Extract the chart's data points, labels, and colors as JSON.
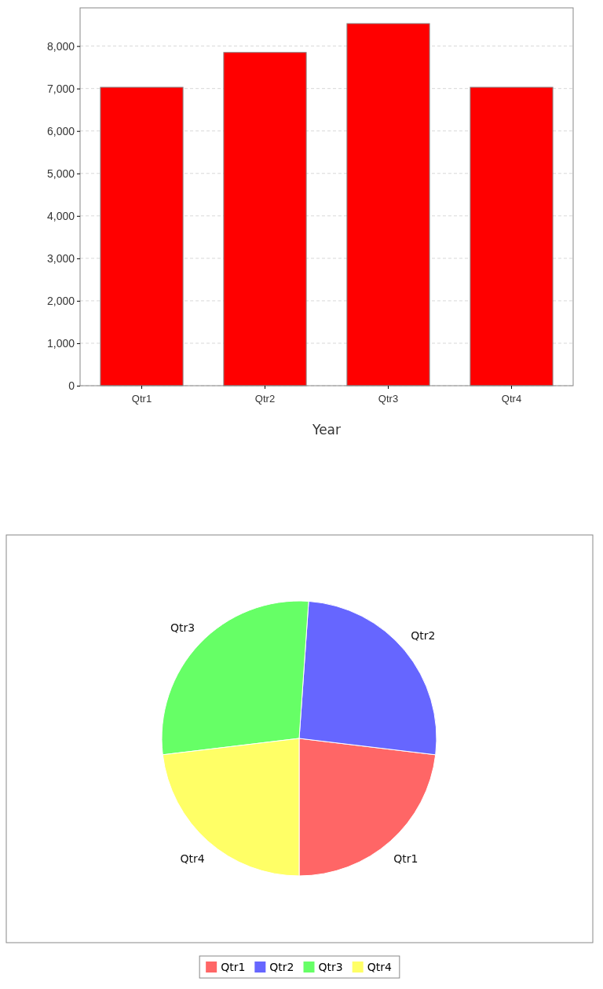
{
  "chart_data": [
    {
      "type": "bar",
      "xlabel": "Year",
      "categories": [
        "Qtr1",
        "Qtr2",
        "Qtr3",
        "Qtr4"
      ],
      "values": [
        7030,
        7850,
        8530,
        7030
      ],
      "color": "#ff0000",
      "ylim": [
        0,
        8900
      ],
      "yticks": [
        {
          "value": 0,
          "label": "0"
        },
        {
          "value": 1000,
          "label": "1,000"
        },
        {
          "value": 2000,
          "label": "2,000"
        },
        {
          "value": 3000,
          "label": "3,000"
        },
        {
          "value": 4000,
          "label": "4,000"
        },
        {
          "value": 5000,
          "label": "5,000"
        },
        {
          "value": 6000,
          "label": "6,000"
        },
        {
          "value": 7000,
          "label": "7,000"
        },
        {
          "value": 8000,
          "label": "8,000"
        }
      ],
      "grid": "y"
    },
    {
      "type": "pie",
      "categories": [
        "Qtr1",
        "Qtr2",
        "Qtr3",
        "Qtr4"
      ],
      "values": [
        23.1,
        25.8,
        28.0,
        23.1
      ],
      "colors": [
        "#ff6666",
        "#6666ff",
        "#66ff66",
        "#ffff66"
      ],
      "legend": "bottom"
    }
  ]
}
